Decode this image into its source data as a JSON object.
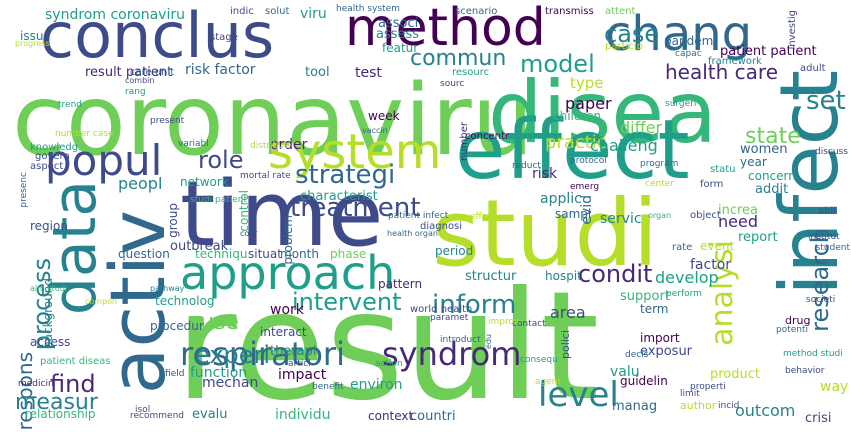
{
  "palette": [
    "#440154",
    "#482878",
    "#3e4a89",
    "#31688e",
    "#26828e",
    "#1f9e89",
    "#35b779",
    "#6ece58",
    "#b5de2b",
    "#fde725"
  ],
  "words": [
    {
      "text": "result",
      "color": "#6ece58"
    },
    {
      "text": "coronaviru",
      "color": "#6ece58"
    },
    {
      "text": "disea",
      "color": "#35b779"
    },
    {
      "text": "effect",
      "color": "#1f9e89"
    },
    {
      "text": "infect",
      "color": "#26828e"
    },
    {
      "text": "studi",
      "color": "#b5de2b"
    },
    {
      "text": "time",
      "color": "#3e4a89"
    },
    {
      "text": "activ",
      "color": "#31688e"
    },
    {
      "text": "data",
      "color": "#26828e"
    },
    {
      "text": "conclus",
      "color": "#3e4a89"
    },
    {
      "text": "method",
      "color": "#440154"
    },
    {
      "text": "chang",
      "color": "#31688e"
    },
    {
      "text": "system",
      "color": "#b5de2b"
    },
    {
      "text": "approach",
      "color": "#1f9e89"
    },
    {
      "text": "popul",
      "color": "#3e4a89"
    },
    {
      "text": "respiratori",
      "color": "#31688e"
    },
    {
      "text": "syndrom",
      "color": "#482878"
    },
    {
      "text": "level",
      "color": "#26828e"
    },
    {
      "text": "treatment",
      "color": "#3e4a89"
    },
    {
      "text": "strategi",
      "color": "#31688e"
    },
    {
      "text": "inform",
      "color": "#26828e"
    },
    {
      "text": "analysi",
      "color": "#b5de2b"
    },
    {
      "text": "research",
      "color": "#31688e"
    },
    {
      "text": "condit",
      "color": "#482878"
    },
    {
      "text": "intervent",
      "color": "#1f9e89"
    },
    {
      "text": "model",
      "color": "#1f9e89"
    },
    {
      "text": "commun",
      "color": "#26828e"
    },
    {
      "text": "case",
      "color": "#26828e"
    },
    {
      "text": "health care",
      "color": "#482878"
    },
    {
      "text": "state",
      "color": "#6ece58"
    },
    {
      "text": "role",
      "color": "#3e4a89"
    },
    {
      "text": "process",
      "color": "#26828e"
    },
    {
      "text": "respons",
      "color": "#31688e"
    },
    {
      "text": "experi",
      "color": "#26828e"
    },
    {
      "text": "find",
      "color": "#482878"
    },
    {
      "text": "measur",
      "color": "#26828e"
    },
    {
      "text": "use",
      "color": "#6ece58"
    },
    {
      "text": "set",
      "color": "#26828e"
    },
    {
      "text": "paper",
      "color": "#440154"
    },
    {
      "text": "type",
      "color": "#b5de2b"
    },
    {
      "text": "practic",
      "color": "#b5de2b"
    },
    {
      "text": "challeng",
      "color": "#1f9e89"
    },
    {
      "text": "differ",
      "color": "#6ece58"
    },
    {
      "text": "develop",
      "color": "#1f9e89"
    },
    {
      "text": "factor",
      "color": "#3e4a89"
    },
    {
      "text": "risk factor",
      "color": "#31688e"
    },
    {
      "text": "risk",
      "color": "#482878"
    },
    {
      "text": "result patient",
      "color": "#482878"
    },
    {
      "text": "patient patient",
      "color": "#440154"
    },
    {
      "text": "syndrom coronaviru",
      "color": "#1f9e89"
    },
    {
      "text": "pandem",
      "color": "#31688e"
    },
    {
      "text": "featur",
      "color": "#1f9e89"
    },
    {
      "text": "assess",
      "color": "#26828e"
    },
    {
      "text": "associ",
      "color": "#31688e"
    },
    {
      "text": "viru",
      "color": "#1f9e89"
    },
    {
      "text": "order",
      "color": "#482878"
    },
    {
      "text": "network",
      "color": "#1f9e89"
    },
    {
      "text": "group",
      "color": "#3e4a89"
    },
    {
      "text": "peopl",
      "color": "#26828e"
    },
    {
      "text": "week",
      "color": "#440154"
    },
    {
      "text": "children",
      "color": "#35b779"
    },
    {
      "text": "women",
      "color": "#31688e"
    },
    {
      "text": "concern",
      "color": "#1f9e89"
    },
    {
      "text": "year",
      "color": "#31688e"
    },
    {
      "text": "addit",
      "color": "#26828e"
    },
    {
      "text": "increa",
      "color": "#6ece58"
    },
    {
      "text": "need",
      "color": "#482878"
    },
    {
      "text": "report",
      "color": "#1f9e89"
    },
    {
      "text": "event",
      "color": "#b5de2b"
    },
    {
      "text": "hospit",
      "color": "#26828e"
    },
    {
      "text": "area",
      "color": "#3e4a89"
    },
    {
      "text": "support",
      "color": "#35b779"
    },
    {
      "text": "term",
      "color": "#31688e"
    },
    {
      "text": "import",
      "color": "#440154"
    },
    {
      "text": "exposur",
      "color": "#3e4a89"
    },
    {
      "text": "valu",
      "color": "#1f9e89"
    },
    {
      "text": "manag",
      "color": "#31688e"
    },
    {
      "text": "outcom",
      "color": "#26828e"
    },
    {
      "text": "individu",
      "color": "#35b779"
    },
    {
      "text": "evalu",
      "color": "#26828e"
    },
    {
      "text": "relationship",
      "color": "#35b779"
    },
    {
      "text": "countri",
      "color": "#31688e"
    },
    {
      "text": "context",
      "color": "#482878"
    },
    {
      "text": "impact",
      "color": "#440154"
    },
    {
      "text": "environ",
      "color": "#1f9e89"
    },
    {
      "text": "therapi",
      "color": "#26828e"
    },
    {
      "text": "mechan",
      "color": "#3e4a89"
    },
    {
      "text": "function",
      "color": "#1f9e89"
    },
    {
      "text": "interact",
      "color": "#3e4a89"
    },
    {
      "text": "procedur",
      "color": "#31688e"
    },
    {
      "text": "work",
      "color": "#440154"
    },
    {
      "text": "outbreak",
      "color": "#3e4a89"
    },
    {
      "text": "techniqu",
      "color": "#35b779"
    },
    {
      "text": "technolog",
      "color": "#1f9e89"
    },
    {
      "text": "question",
      "color": "#31688e"
    },
    {
      "text": "region",
      "color": "#3e4a89"
    },
    {
      "text": "background",
      "color": "#26828e"
    },
    {
      "text": "access",
      "color": "#3e4a89"
    },
    {
      "text": "month",
      "color": "#31688e"
    },
    {
      "text": "situat",
      "color": "#3e4a89"
    },
    {
      "text": "phase",
      "color": "#6ece58"
    },
    {
      "text": "pattern",
      "color": "#482878"
    },
    {
      "text": "period",
      "color": "#26828e"
    },
    {
      "text": "structur",
      "color": "#26828e"
    },
    {
      "text": "servic",
      "color": "#26828e"
    },
    {
      "text": "sampl",
      "color": "#31688e"
    },
    {
      "text": "applic",
      "color": "#26828e"
    },
    {
      "text": "evid",
      "color": "#31688e"
    },
    {
      "text": "characterist",
      "color": "#1f9e89"
    },
    {
      "text": "problem",
      "color": "#31688e"
    },
    {
      "text": "control",
      "color": "#35b779"
    },
    {
      "text": "test",
      "color": "#482878"
    },
    {
      "text": "tool",
      "color": "#26828e"
    },
    {
      "text": "care unit",
      "color": "#31688e"
    },
    {
      "text": "stage",
      "color": "#3e4a89"
    },
    {
      "text": "issu",
      "color": "#26828e"
    },
    {
      "text": "indic",
      "color": "#3e4a89"
    },
    {
      "text": "solut",
      "color": "#31688e"
    },
    {
      "text": "health system",
      "color": "#31688e"
    },
    {
      "text": "scenario",
      "color": "#31688e"
    },
    {
      "text": "transmiss",
      "color": "#440154"
    },
    {
      "text": "attent",
      "color": "#6ece58"
    },
    {
      "text": "particip",
      "color": "#b5de2b"
    },
    {
      "text": "framework",
      "color": "#26828e"
    },
    {
      "text": "capac",
      "color": "#31688e"
    },
    {
      "text": "investig",
      "color": "#3e4a89"
    },
    {
      "text": "adult",
      "color": "#3e4a89"
    },
    {
      "text": "resourc",
      "color": "#1f9e89"
    },
    {
      "text": "sourc",
      "color": "#3e4a89"
    },
    {
      "text": "concentr",
      "color": "#440154"
    },
    {
      "text": "number",
      "color": "#482878"
    },
    {
      "text": "program",
      "color": "#31688e"
    },
    {
      "text": "statu",
      "color": "#1f9e89"
    },
    {
      "text": "form",
      "color": "#3e4a89"
    },
    {
      "text": "center",
      "color": "#b5de2b"
    },
    {
      "text": "discuss",
      "color": "#3e4a89"
    },
    {
      "text": "surgeri",
      "color": "#1f9e89"
    },
    {
      "text": "emerg",
      "color": "#440154"
    },
    {
      "text": "protocol",
      "color": "#31688e"
    },
    {
      "text": "abil",
      "color": "#3e4a89"
    },
    {
      "text": "object",
      "color": "#3e4a89"
    },
    {
      "text": "institut",
      "color": "#3e4a89"
    },
    {
      "text": "rate",
      "color": "#31688e"
    },
    {
      "text": "student",
      "color": "#31688e"
    },
    {
      "text": "drug",
      "color": "#440154"
    },
    {
      "text": "societi",
      "color": "#3e4a89"
    },
    {
      "text": "way",
      "color": "#b5de2b"
    },
    {
      "text": "crisi",
      "color": "#3e4a89"
    },
    {
      "text": "behavior",
      "color": "#3e4a89"
    },
    {
      "text": "method studi",
      "color": "#1f9e89"
    },
    {
      "text": "potenti",
      "color": "#31688e"
    },
    {
      "text": "perform",
      "color": "#1f9e89"
    },
    {
      "text": "product",
      "color": "#b5de2b"
    },
    {
      "text": "author",
      "color": "#b5de2b"
    },
    {
      "text": "guidelin",
      "color": "#440154"
    },
    {
      "text": "incid",
      "color": "#3e4a89"
    },
    {
      "text": "decis",
      "color": "#31688e"
    },
    {
      "text": "limit",
      "color": "#3e4a89"
    },
    {
      "text": "properti",
      "color": "#3e4a89"
    },
    {
      "text": "consequ",
      "color": "#1f9e89"
    },
    {
      "text": "agent",
      "color": "#b5de2b"
    },
    {
      "text": "polici",
      "color": "#3e4a89"
    },
    {
      "text": "introduct",
      "color": "#31688e"
    },
    {
      "text": "edu",
      "color": "#31688e"
    },
    {
      "text": "contact",
      "color": "#3e4a89"
    },
    {
      "text": "improv",
      "color": "#b5de2b"
    },
    {
      "text": "paramet",
      "color": "#3e4a89"
    },
    {
      "text": "world health",
      "color": "#3e4a89"
    },
    {
      "text": "action",
      "color": "#1f9e89"
    },
    {
      "text": "benefit",
      "color": "#31688e"
    },
    {
      "text": "articl",
      "color": "#3e4a89"
    },
    {
      "text": "patient diseas",
      "color": "#35b779"
    },
    {
      "text": "medicin",
      "color": "#482878"
    },
    {
      "text": "field",
      "color": "#3e4a89"
    },
    {
      "text": "isol",
      "color": "#3e4a89"
    },
    {
      "text": "recommend",
      "color": "#3e4a89"
    },
    {
      "text": "pathway",
      "color": "#26828e"
    },
    {
      "text": "compon",
      "color": "#b5de2b"
    },
    {
      "text": "aim studi",
      "color": "#35b779"
    },
    {
      "text": "cour",
      "color": "#3e4a89"
    },
    {
      "text": "health organ",
      "color": "#31688e"
    },
    {
      "text": "patient infect",
      "color": "#31688e"
    },
    {
      "text": "diagnosi",
      "color": "#3e4a89"
    },
    {
      "text": "effort",
      "color": "#b5de2b"
    },
    {
      "text": "organ",
      "color": "#35b779"
    },
    {
      "text": "reduct",
      "color": "#31688e"
    },
    {
      "text": "mortal rate",
      "color": "#3e4a89"
    },
    {
      "text": "studi patient",
      "color": "#35b779"
    },
    {
      "text": "vaccin",
      "color": "#31688e"
    },
    {
      "text": "distribut",
      "color": "#b5de2b"
    },
    {
      "text": "variabl",
      "color": "#31688e"
    },
    {
      "text": "present",
      "color": "#3e4a89"
    },
    {
      "text": "combin",
      "color": "#3e4a89"
    },
    {
      "text": "rang",
      "color": "#1f9e89"
    },
    {
      "text": "trend",
      "color": "#1f9e89"
    },
    {
      "text": "number case",
      "color": "#b5de2b"
    },
    {
      "text": "knowledg",
      "color": "#1f9e89"
    },
    {
      "text": "govern",
      "color": "#3e4a89"
    },
    {
      "text": "aspect",
      "color": "#3e4a89"
    },
    {
      "text": "presenc",
      "color": "#31688e"
    },
    {
      "text": "progress",
      "color": "#b5de2b"
    }
  ]
}
